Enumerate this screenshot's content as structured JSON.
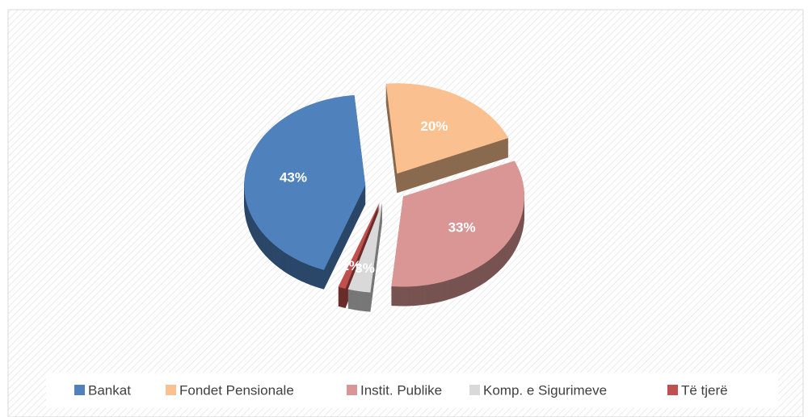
{
  "chart_data": {
    "type": "pie",
    "categories": [
      "Bankat",
      "Fondet Pensionale",
      "Instit. Publike",
      "Komp. e Sigurimeve",
      "Të tjerë"
    ],
    "values": [
      43,
      20,
      33,
      3,
      1
    ],
    "value_labels": [
      "43%",
      "20%",
      "33%",
      "3%",
      "1%"
    ],
    "colors": [
      "#4f81bd",
      "#fac08f",
      "#d99694",
      "#d9d9d9",
      "#c0504d"
    ],
    "legend": "bottom"
  }
}
